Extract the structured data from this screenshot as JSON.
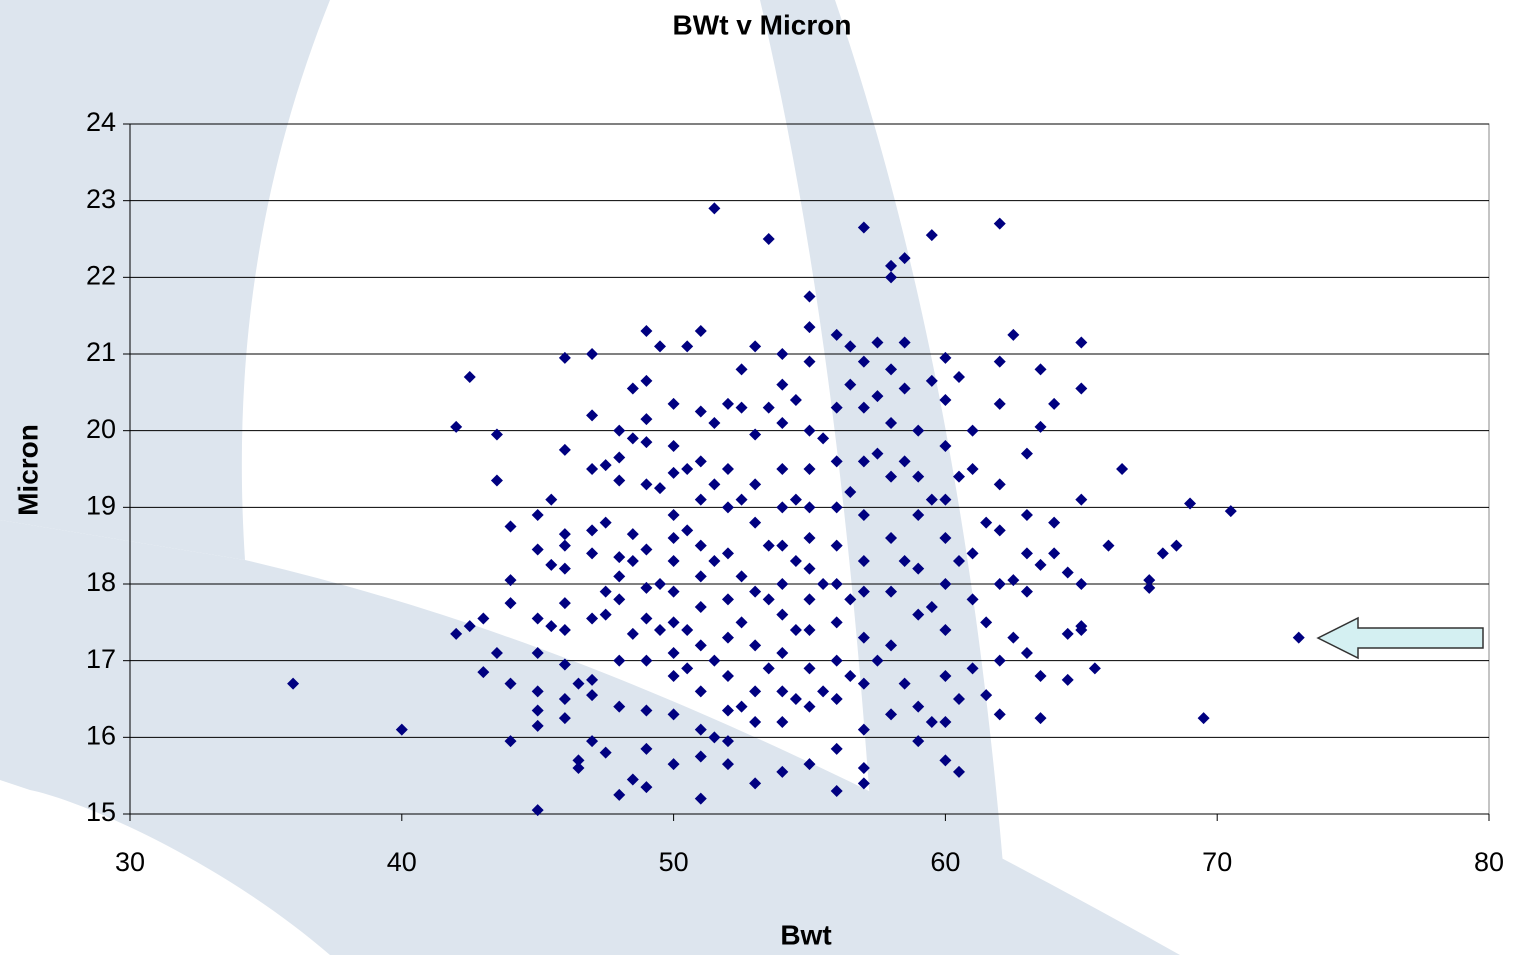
{
  "chart_data": {
    "type": "scatter",
    "title": "BWt  v Micron",
    "xlabel": "Bwt",
    "ylabel": "Micron",
    "color": "#000080",
    "xlim": [
      30,
      80
    ],
    "ylim": [
      15,
      24
    ],
    "xticks": [
      30,
      40,
      50,
      60,
      70,
      80
    ],
    "yticks": [
      15,
      16,
      17,
      18,
      19,
      20,
      21,
      22,
      23,
      24
    ],
    "grid": true,
    "x": [
      36,
      40,
      42,
      42.5,
      42,
      42.5,
      43,
      43,
      43.5,
      43.5,
      43.5,
      44,
      44,
      44,
      44,
      44,
      45,
      45,
      45,
      45,
      45,
      45,
      45,
      45,
      45.5,
      45.5,
      45.5,
      46,
      46,
      46,
      46,
      46,
      46,
      46,
      46,
      46,
      46,
      46.5,
      46.5,
      46.5,
      47,
      47,
      47,
      47,
      47,
      47,
      47,
      47,
      47,
      47.5,
      47.5,
      47.5,
      47.5,
      47.5,
      48,
      48,
      48,
      48,
      48,
      48,
      48,
      48,
      48,
      48.5,
      48.5,
      48.5,
      48.5,
      48.5,
      48.5,
      49,
      49,
      49,
      49,
      49,
      49,
      49,
      49,
      49,
      49,
      49,
      49,
      49.5,
      49.5,
      49.5,
      49.5,
      50,
      50,
      50,
      50,
      50,
      50,
      50,
      50,
      50,
      50,
      50,
      50,
      50.5,
      50.5,
      50.5,
      50.5,
      50.5,
      51,
      51,
      51,
      51,
      51,
      51,
      51,
      51,
      51,
      51,
      51,
      51,
      51.5,
      51.5,
      51.5,
      51.5,
      51.5,
      51.5,
      52,
      52,
      52,
      52,
      52,
      52,
      52,
      52,
      52,
      52,
      52.5,
      52.5,
      52.5,
      52.5,
      52.5,
      52.5,
      53,
      53,
      53,
      53,
      53,
      53,
      53,
      53,
      53,
      53.5,
      53.5,
      53.5,
      53.5,
      53.5,
      54,
      54,
      54,
      54,
      54,
      54,
      54,
      54,
      54,
      54,
      54,
      54,
      54.5,
      54.5,
      54.5,
      54.5,
      54.5,
      55,
      55,
      55,
      55,
      55,
      55,
      55,
      55,
      55,
      55,
      55,
      55,
      55,
      55.5,
      55.5,
      55.5,
      56,
      56,
      56,
      56,
      56,
      56,
      56,
      56,
      56,
      56,
      56,
      56.5,
      56.5,
      56.5,
      56.5,
      56.5,
      57,
      57,
      57,
      57,
      57,
      57,
      57,
      57,
      57,
      57,
      57,
      57,
      57.5,
      57.5,
      57.5,
      57.5,
      58,
      58,
      58,
      58,
      58,
      58,
      58,
      58,
      58,
      58.5,
      58.5,
      58.5,
      58.5,
      58.5,
      58.5,
      59,
      59,
      59,
      59,
      59,
      59,
      59,
      59.5,
      59.5,
      59.5,
      59.5,
      59.5,
      60,
      60,
      60,
      60,
      60,
      60,
      60,
      60,
      60,
      60,
      60.5,
      60.5,
      60.5,
      60.5,
      60.5,
      61,
      61,
      61,
      61,
      61,
      61.5,
      61.5,
      61.5,
      62,
      62,
      62,
      62,
      62,
      62,
      62,
      62,
      62.5,
      62.5,
      62.5,
      63,
      63,
      63,
      63,
      63,
      63.5,
      63.5,
      63.5,
      63.5,
      63.5,
      64,
      64,
      64,
      64.5,
      64.5,
      64.5,
      65,
      65,
      65,
      65,
      65,
      65,
      65.5,
      66,
      66.5,
      67.5,
      67.5,
      68,
      68.5,
      69,
      69.5,
      70.5,
      73
    ],
    "values": [
      16.7,
      16.1,
      20.05,
      20.7,
      17.35,
      17.45,
      17.55,
      16.85,
      19.95,
      19.35,
      17.1,
      18.75,
      18.05,
      17.75,
      16.7,
      15.95,
      15.05,
      18.9,
      18.45,
      17.55,
      17.1,
      16.6,
      16.35,
      16.15,
      19.1,
      18.25,
      17.45,
      20.95,
      19.75,
      18.65,
      18.5,
      18.2,
      17.75,
      17.4,
      16.95,
      16.5,
      16.25,
      16.7,
      15.7,
      15.6,
      21,
      20.2,
      19.5,
      18.7,
      18.4,
      17.55,
      16.75,
      16.55,
      15.95,
      19.55,
      18.8,
      17.9,
      17.6,
      15.8,
      20,
      19.65,
      19.35,
      18.35,
      18.1,
      17.8,
      17,
      16.4,
      15.25,
      20.55,
      19.9,
      18.65,
      18.3,
      17.35,
      15.45,
      21.3,
      20.65,
      20.15,
      19.85,
      19.3,
      18.45,
      17.95,
      17.55,
      17,
      16.35,
      15.85,
      15.35,
      21.1,
      19.25,
      18,
      17.4,
      20.35,
      19.8,
      19.45,
      18.9,
      18.6,
      18.3,
      17.9,
      17.5,
      17.1,
      16.8,
      16.3,
      15.65,
      21.1,
      19.5,
      18.7,
      17.4,
      16.9,
      21.3,
      20.25,
      19.6,
      19.1,
      18.5,
      18.1,
      17.7,
      17.2,
      16.6,
      16.1,
      15.75,
      15.2,
      22.9,
      20.1,
      19.3,
      18.3,
      17,
      16,
      20.35,
      19.5,
      19,
      18.4,
      17.8,
      17.3,
      16.8,
      16.35,
      15.95,
      15.65,
      20.8,
      20.3,
      19.1,
      18.1,
      17.5,
      16.4,
      21.1,
      19.95,
      19.3,
      18.8,
      17.9,
      17.2,
      16.6,
      16.2,
      15.4,
      22.5,
      20.3,
      18.5,
      17.8,
      16.9,
      21,
      20.6,
      20.1,
      19.5,
      19,
      18.5,
      18,
      17.6,
      17.1,
      16.6,
      16.2,
      15.55,
      20.4,
      19.1,
      18.3,
      17.4,
      16.5,
      21.75,
      21.35,
      20.9,
      20,
      19.5,
      19,
      18.6,
      18.2,
      17.8,
      17.4,
      16.9,
      16.4,
      15.65,
      19.9,
      18,
      16.6,
      21.25,
      20.3,
      19.6,
      19,
      18.5,
      18,
      17.5,
      17,
      16.5,
      15.85,
      15.3,
      21.1,
      20.6,
      19.2,
      17.8,
      16.8,
      22.65,
      20.9,
      20.3,
      19.6,
      18.9,
      18.3,
      17.9,
      17.3,
      16.7,
      16.1,
      15.6,
      15.4,
      21.15,
      20.45,
      19.7,
      17,
      22.15,
      22,
      20.8,
      20.1,
      19.4,
      18.6,
      17.9,
      17.2,
      16.3,
      22.25,
      21.15,
      20.55,
      19.6,
      18.3,
      16.7,
      20,
      19.4,
      18.9,
      18.2,
      17.6,
      16.4,
      15.95,
      22.55,
      20.65,
      19.1,
      17.7,
      16.2,
      20.95,
      20.4,
      19.8,
      19.1,
      18.6,
      18,
      17.4,
      16.8,
      16.2,
      15.7,
      20.7,
      19.4,
      18.3,
      16.5,
      15.55,
      20,
      19.5,
      18.4,
      17.8,
      16.9,
      18.8,
      17.5,
      16.55,
      22.7,
      20.9,
      20.35,
      19.3,
      18.7,
      18,
      17,
      16.3,
      21.25,
      18.05,
      17.3,
      19.7,
      18.9,
      18.4,
      17.9,
      17.1,
      20.8,
      20.05,
      18.25,
      16.8,
      16.25,
      20.35,
      18.8,
      18.4,
      18.15,
      17.35,
      16.75,
      21.15,
      20.55,
      19.1,
      18,
      17.45,
      17.4,
      16.9,
      18.5,
      19.5,
      18.05,
      17.95,
      18.4,
      18.5,
      19.05,
      16.25,
      18.95,
      17.3
    ]
  }
}
